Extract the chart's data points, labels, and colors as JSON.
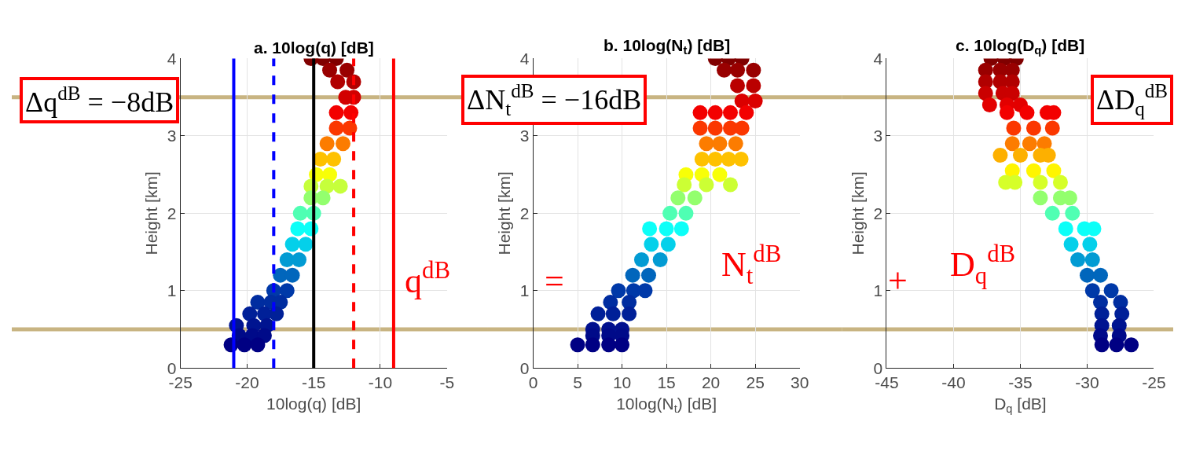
{
  "chart_data": [
    {
      "type": "scatter",
      "title": "a. 10log(q) [dB]",
      "xlabel": "10log(q) [dB]",
      "ylabel": "Height [km]",
      "marker": "circle",
      "grid": true,
      "x": [
        -15.2,
        -14.3,
        -13.3,
        -13.8,
        -12.5,
        -13.2,
        -12.0,
        -12.6,
        -12.0,
        -13.3,
        -12.2,
        -13.3,
        -12.3,
        -14.0,
        -12.8,
        -14.5,
        -13.5,
        -14.8,
        -13.8,
        -15.2,
        -14.0,
        -13.0,
        -15.2,
        -14.3,
        -16.0,
        -15.0,
        -16.2,
        -15.2,
        -16.6,
        -15.6,
        -17.0,
        -16.1,
        -17.5,
        -16.6,
        -18.0,
        -17.0,
        -19.2,
        -18.2,
        -17.5,
        -19.8,
        -18.7,
        -17.8,
        -20.8,
        -19.5,
        -18.5,
        -20.6,
        -19.6,
        -18.7,
        -21.2,
        -20.2,
        -19.2
      ],
      "values": [
        4.0,
        4.0,
        4.0,
        3.85,
        3.85,
        3.7,
        3.7,
        3.5,
        3.5,
        3.3,
        3.3,
        3.1,
        3.1,
        2.9,
        2.9,
        2.7,
        2.7,
        2.5,
        2.5,
        2.35,
        2.35,
        2.35,
        2.2,
        2.2,
        2.0,
        2.0,
        1.8,
        1.8,
        1.6,
        1.6,
        1.4,
        1.4,
        1.2,
        1.2,
        1.0,
        1.0,
        0.85,
        0.85,
        0.85,
        0.7,
        0.7,
        0.7,
        0.55,
        0.55,
        0.55,
        0.42,
        0.42,
        0.42,
        0.3,
        0.3,
        0.3
      ],
      "xlim": [
        -25,
        -5
      ],
      "xticks": [
        -25,
        -20,
        -15,
        -10,
        -5
      ],
      "ylim": [
        0,
        4
      ],
      "yticks": [
        0,
        1,
        2,
        3,
        4
      ],
      "ref_lines": [
        {
          "axis": "y",
          "value": 3.5,
          "color": "#c8b482"
        },
        {
          "axis": "y",
          "value": 0.5,
          "color": "#c8b482"
        },
        {
          "axis": "x",
          "value": -21,
          "color": "#0000ff",
          "line_style": "solid"
        },
        {
          "axis": "x",
          "value": -18,
          "color": "#0000ff",
          "line_style": "dashed"
        },
        {
          "axis": "x",
          "value": -15,
          "color": "#000000",
          "line_style": "solid"
        },
        {
          "axis": "x",
          "value": -12,
          "color": "#ff0000",
          "line_style": "dashed"
        },
        {
          "axis": "x",
          "value": -9,
          "color": "#ff0000",
          "line_style": "solid"
        }
      ],
      "annotations": [
        "Δq$^{dB}$ = −8dB",
        "q$^{dB}$"
      ]
    },
    {
      "type": "scatter",
      "title": "b. 10log(N$_{t}$) [dB]",
      "xlabel": "10log(N$_{t}$) [dB]",
      "ylabel": "Height [km]",
      "marker": "circle",
      "grid": true,
      "x": [
        20.5,
        22,
        23.5,
        21.5,
        23,
        24.8,
        23,
        24.8,
        23.5,
        25,
        18.8,
        20.5,
        22.2,
        24,
        18.8,
        20.5,
        22.2,
        23.5,
        19.5,
        21,
        22.8,
        19,
        20.5,
        22,
        23.4,
        17.2,
        19,
        21,
        22.2,
        17,
        19.5,
        16.3,
        18.2,
        15.4,
        17.2,
        13.1,
        15,
        16.7,
        13.3,
        15.2,
        12.2,
        14.3,
        11.2,
        13,
        9.6,
        11.3,
        12.6,
        8.7,
        10.8,
        7.3,
        9,
        10.8,
        6.7,
        8.5,
        10,
        6.7,
        8.5,
        10,
        5,
        6.7,
        8.5,
        10
      ],
      "values": [
        4.0,
        4.0,
        4.0,
        3.85,
        3.85,
        3.85,
        3.65,
        3.65,
        3.45,
        3.45,
        3.3,
        3.3,
        3.3,
        3.3,
        3.1,
        3.1,
        3.1,
        3.1,
        2.9,
        2.9,
        2.9,
        2.7,
        2.7,
        2.7,
        2.7,
        2.5,
        2.5,
        2.5,
        2.37,
        2.37,
        2.37,
        2.2,
        2.2,
        2.0,
        2.0,
        1.8,
        1.8,
        1.8,
        1.6,
        1.6,
        1.4,
        1.4,
        1.2,
        1.2,
        1.0,
        1.0,
        1.0,
        0.85,
        0.85,
        0.7,
        0.7,
        0.7,
        0.5,
        0.5,
        0.5,
        0.42,
        0.42,
        0.42,
        0.3,
        0.3,
        0.3,
        0.3
      ],
      "xlim": [
        0,
        30
      ],
      "xticks": [
        0,
        5,
        10,
        15,
        20,
        25,
        30
      ],
      "ylim": [
        0,
        4
      ],
      "yticks": [
        0,
        1,
        2,
        3,
        4
      ],
      "ref_lines": [
        {
          "axis": "y",
          "value": 3.5,
          "color": "#c8b482"
        },
        {
          "axis": "y",
          "value": 0.5,
          "color": "#c8b482"
        }
      ],
      "annotations": [
        "ΔN$_{t}$$^{dB}$ = −16dB",
        "=",
        "N$_{t}$$^{dB}$"
      ]
    },
    {
      "type": "scatter",
      "title": "c. 10log(D$_{q}$) [dB]",
      "xlabel": "D$_{q}$ [dB]",
      "ylabel": "Height [km]",
      "marker": "circle",
      "grid": true,
      "x": [
        -37.2,
        -36.2,
        -35.3,
        -37.6,
        -36.5,
        -35.6,
        -37.6,
        -36.5,
        -35.6,
        -37.6,
        -36.3,
        -35.6,
        -37.3,
        -36,
        -35,
        -36,
        -34.5,
        -33,
        -32.5,
        -35.5,
        -34,
        -32.6,
        -35.6,
        -34.3,
        -33.2,
        -36.5,
        -35,
        -33.5,
        -32.9,
        -35.6,
        -34,
        -32.5,
        -36.1,
        -35.4,
        -33.5,
        -32,
        -33.5,
        -32,
        -31.3,
        -32.6,
        -31.1,
        -31.6,
        -30.2,
        -29.5,
        -31.2,
        -29.8,
        -30.7,
        -29.6,
        -30,
        -29,
        -29.6,
        -28.2,
        -29,
        -27.5,
        -28.9,
        -27.4,
        -28.9,
        -27.6,
        -29,
        -27.6,
        -28.9,
        -27.8,
        -26.7
      ],
      "values": [
        4.0,
        4.0,
        4.0,
        3.85,
        3.85,
        3.85,
        3.7,
        3.7,
        3.7,
        3.55,
        3.55,
        3.55,
        3.4,
        3.4,
        3.4,
        3.3,
        3.3,
        3.3,
        3.3,
        3.1,
        3.1,
        3.1,
        2.9,
        2.9,
        2.9,
        2.75,
        2.75,
        2.75,
        2.75,
        2.55,
        2.55,
        2.55,
        2.4,
        2.4,
        2.4,
        2.4,
        2.2,
        2.2,
        2.2,
        2.0,
        2.0,
        1.8,
        1.8,
        1.8,
        1.6,
        1.6,
        1.4,
        1.4,
        1.2,
        1.2,
        1.0,
        1.0,
        0.85,
        0.85,
        0.7,
        0.7,
        0.55,
        0.55,
        0.42,
        0.42,
        0.3,
        0.3,
        0.3
      ],
      "xlim": [
        -45,
        -25
      ],
      "xticks": [
        -45,
        -40,
        -35,
        -30,
        -25
      ],
      "ylim": [
        0,
        4
      ],
      "yticks": [
        0,
        1,
        2,
        3,
        4
      ],
      "ref_lines": [
        {
          "axis": "y",
          "value": 3.5,
          "color": "#c8b482"
        },
        {
          "axis": "y",
          "value": 0.5,
          "color": "#c8b482"
        }
      ],
      "annotations": [
        "ΔD$_{q}$$^{dB}$",
        "+",
        "D$_{q}$$^{dB}$"
      ]
    }
  ]
}
